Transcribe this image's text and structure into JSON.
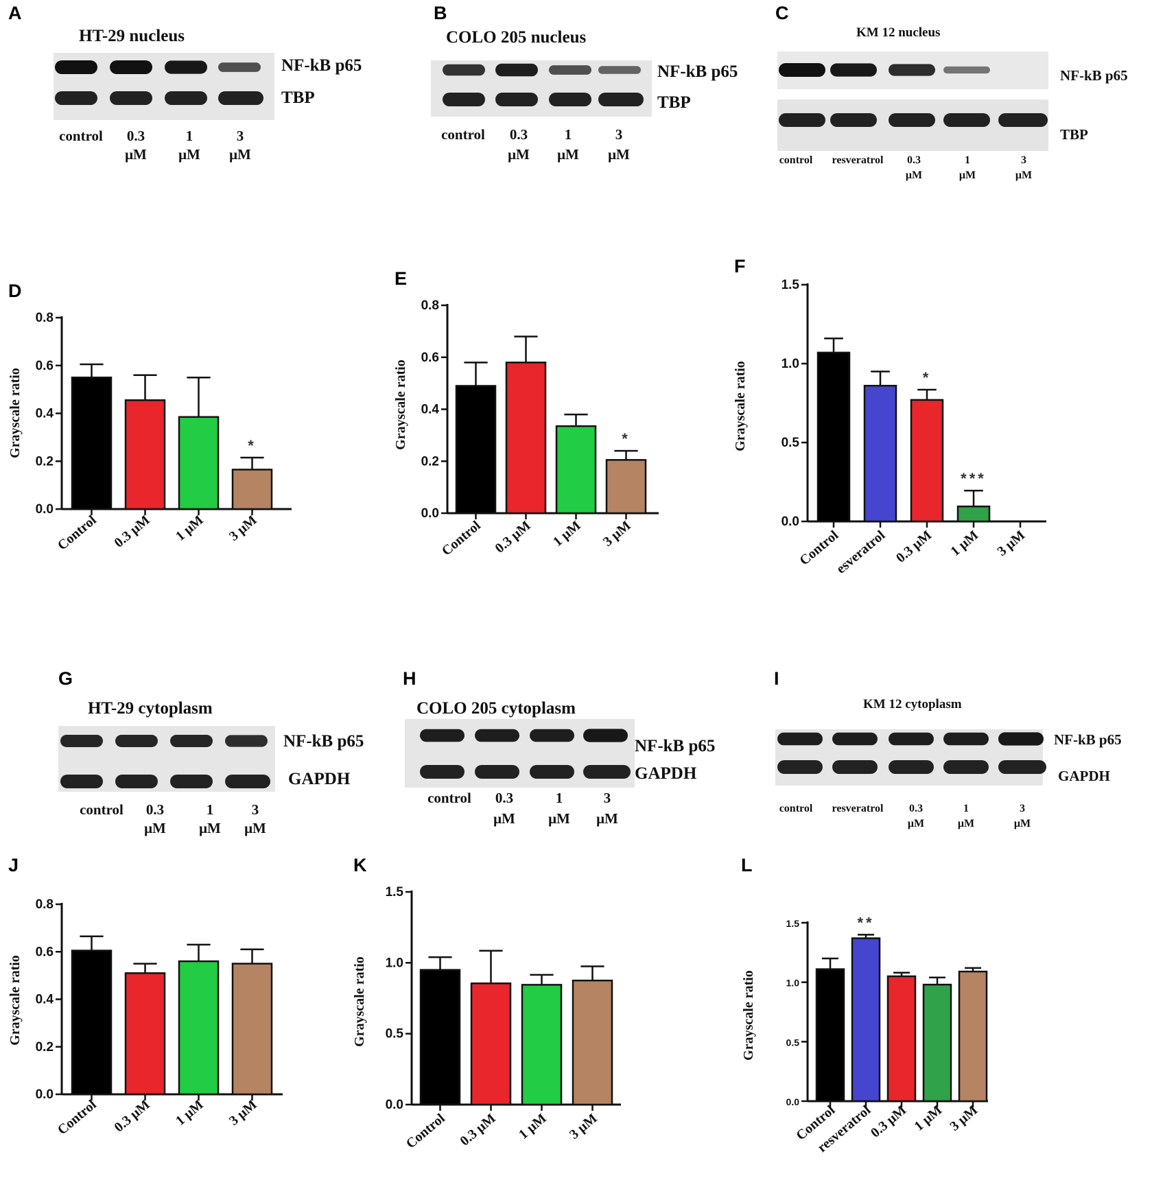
{
  "colors": {
    "black": "#000000",
    "red": "#e8262c",
    "green": "#22cc44",
    "brown": "#b58462",
    "blue": "#4545cf",
    "darkgreen": "#2fa24a"
  },
  "blots": [
    {
      "id": "A",
      "letter": "A",
      "title": "HT-29 nucleus",
      "bands": [
        "NF-kB p65",
        "TBP"
      ],
      "lanes": [
        [
          "control"
        ],
        [
          "0.3",
          "μM"
        ],
        [
          "1",
          "μM"
        ],
        [
          "3",
          "μM"
        ]
      ],
      "p65_intensity": [
        1.0,
        1.0,
        0.95,
        0.55
      ]
    },
    {
      "id": "B",
      "letter": "B",
      "title": "COLO 205 nucleus",
      "bands": [
        "NF-kB p65",
        "TBP"
      ],
      "lanes": [
        [
          "control"
        ],
        [
          "0.3",
          "μM"
        ],
        [
          "1",
          "μM"
        ],
        [
          "3",
          "μM"
        ]
      ],
      "p65_intensity": [
        0.75,
        0.9,
        0.55,
        0.4
      ]
    },
    {
      "id": "C",
      "letter": "C",
      "title": "KM 12 nucleus",
      "bands": [
        "NF-kB p65",
        "TBP"
      ],
      "lanes": [
        [
          "control"
        ],
        [
          "resveratrol"
        ],
        [
          "0.3",
          "μM"
        ],
        [
          "1",
          "μM"
        ],
        [
          "3",
          "μM"
        ]
      ],
      "p65_intensity": [
        1.0,
        0.95,
        0.8,
        0.3,
        0.0
      ]
    },
    {
      "id": "G",
      "letter": "G",
      "title": "HT-29 cytoplasm",
      "bands": [
        "NF-kB p65",
        "GAPDH"
      ],
      "lanes": [
        [
          "control"
        ],
        [
          "0.3",
          "μM"
        ],
        [
          "1",
          "μM"
        ],
        [
          "3",
          "μM"
        ]
      ],
      "p65_intensity": [
        0.85,
        0.85,
        0.85,
        0.8
      ]
    },
    {
      "id": "H",
      "letter": "H",
      "title": "COLO 205 cytoplasm",
      "bands": [
        "NF-kB p65",
        "GAPDH"
      ],
      "lanes": [
        [
          "control"
        ],
        [
          "0.3",
          "μM"
        ],
        [
          "1",
          "μM"
        ],
        [
          "3",
          "μM"
        ]
      ],
      "p65_intensity": [
        0.9,
        0.9,
        0.9,
        0.95
      ]
    },
    {
      "id": "I",
      "letter": "I",
      "title": "KM 12 cytoplasm",
      "bands": [
        "NF-kB p65",
        "GAPDH"
      ],
      "lanes": [
        [
          "control"
        ],
        [
          "resveratrol"
        ],
        [
          "0.3",
          "μM"
        ],
        [
          "1",
          "μM"
        ],
        [
          "3",
          "μM"
        ]
      ],
      "p65_intensity": [
        0.9,
        0.9,
        0.9,
        0.9,
        0.95
      ]
    }
  ],
  "chart_data": [
    {
      "id": "D",
      "letter": "D",
      "type": "bar",
      "ylabel": "Grayscale ratio",
      "ylim": [
        0,
        0.8
      ],
      "yticks": [
        "0.0",
        "0.2",
        "0.4",
        "0.6",
        "0.8"
      ],
      "categories": [
        "Control",
        "0.3 μM",
        "1 μM",
        "3 μM"
      ],
      "values": [
        0.55,
        0.455,
        0.385,
        0.165
      ],
      "errors": [
        0.055,
        0.105,
        0.165,
        0.05
      ],
      "colors": [
        "black",
        "red",
        "green",
        "brown"
      ],
      "significance": [
        "",
        "",
        "",
        "*"
      ]
    },
    {
      "id": "E",
      "letter": "E",
      "type": "bar",
      "ylabel": "Grayscale ratio",
      "ylim": [
        0,
        0.8
      ],
      "yticks": [
        "0.0",
        "0.2",
        "0.4",
        "0.6",
        "0.8"
      ],
      "categories": [
        "Control",
        "0.3 μM",
        "1 μM",
        "3 μM"
      ],
      "values": [
        0.49,
        0.58,
        0.335,
        0.205
      ],
      "errors": [
        0.09,
        0.1,
        0.045,
        0.035
      ],
      "colors": [
        "black",
        "red",
        "green",
        "brown"
      ],
      "significance": [
        "",
        "",
        "",
        "*"
      ]
    },
    {
      "id": "F",
      "letter": "F",
      "type": "bar",
      "ylabel": "Grayscale ratio",
      "ylim": [
        0,
        1.5
      ],
      "yticks": [
        "0.0",
        "0.5",
        "1.0",
        "1.5"
      ],
      "categories": [
        "Control",
        "esveratrol",
        "0.3 μM",
        "1 μM",
        "3 μM"
      ],
      "values": [
        1.07,
        0.86,
        0.77,
        0.095,
        0.0
      ],
      "errors": [
        0.09,
        0.09,
        0.065,
        0.1,
        0.0
      ],
      "colors": [
        "black",
        "blue",
        "red",
        "darkgreen",
        "brown"
      ],
      "significance": [
        "",
        "",
        "*",
        "***",
        ""
      ]
    },
    {
      "id": "J",
      "letter": "J",
      "type": "bar",
      "ylabel": "Grayscale ratio",
      "ylim": [
        0,
        0.8
      ],
      "yticks": [
        "0.0",
        "0.2",
        "0.4",
        "0.6",
        "0.8"
      ],
      "categories": [
        "Control",
        "0.3 μM",
        "1 μM",
        "3 μM"
      ],
      "values": [
        0.605,
        0.51,
        0.56,
        0.55
      ],
      "errors": [
        0.06,
        0.04,
        0.07,
        0.06
      ],
      "colors": [
        "black",
        "red",
        "green",
        "brown"
      ],
      "significance": [
        "",
        "",
        "",
        ""
      ]
    },
    {
      "id": "K",
      "letter": "K",
      "type": "bar",
      "ylabel": "Grayscale ratio",
      "ylim": [
        0,
        1.5
      ],
      "yticks": [
        "0.0",
        "0.5",
        "1.0",
        "1.5"
      ],
      "categories": [
        "Control",
        "0.3 μM",
        "1 μM",
        "3 μM"
      ],
      "values": [
        0.95,
        0.855,
        0.845,
        0.875
      ],
      "errors": [
        0.09,
        0.23,
        0.07,
        0.1
      ],
      "colors": [
        "black",
        "red",
        "green",
        "brown"
      ],
      "significance": [
        "",
        "",
        "",
        ""
      ]
    },
    {
      "id": "L",
      "letter": "L",
      "type": "bar",
      "ylabel": "Grayscale ratio",
      "ylim": [
        0,
        1.5
      ],
      "yticks": [
        "0.0",
        "0.5",
        "1.0",
        "1.5"
      ],
      "categories": [
        "Control",
        "resveratrol",
        "0.3 μM",
        "1 μM",
        "3 μM"
      ],
      "values": [
        1.11,
        1.37,
        1.05,
        0.98,
        1.09
      ],
      "errors": [
        0.09,
        0.03,
        0.03,
        0.06,
        0.03
      ],
      "colors": [
        "black",
        "blue",
        "red",
        "darkgreen",
        "brown"
      ],
      "significance": [
        "",
        "**",
        "",
        "",
        ""
      ]
    }
  ]
}
